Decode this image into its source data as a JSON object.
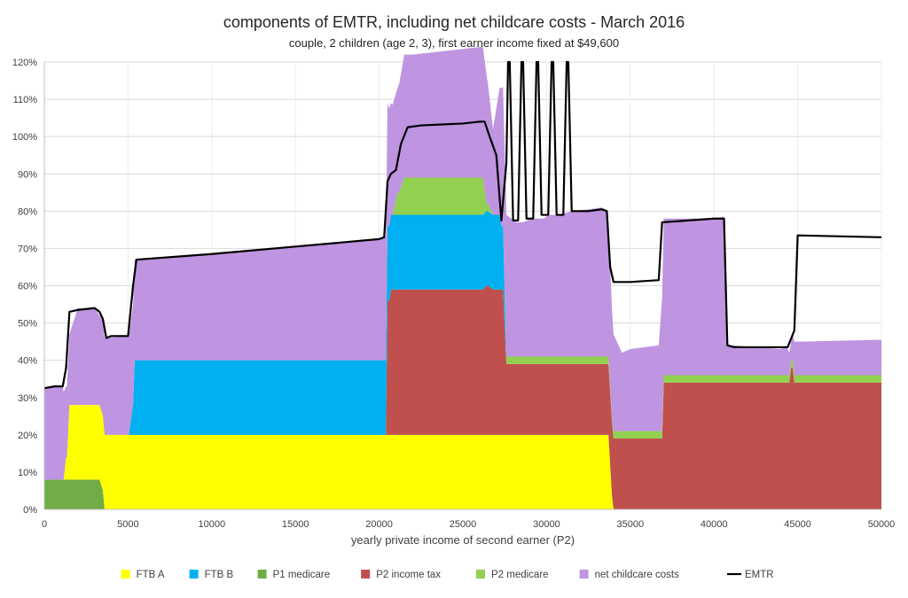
{
  "chart_data": {
    "type": "area",
    "title": "components of EMTR, including net childcare costs - March 2016",
    "subtitle": "couple, 2 children (age 2, 3), first earner income fixed at $49,600",
    "xlabel": "yearly private income of second earner (P2)",
    "ylabel": "",
    "xlim": [
      0,
      50000
    ],
    "ylim": [
      0,
      120
    ],
    "x_ticks": [
      0,
      5000,
      10000,
      15000,
      20000,
      25000,
      30000,
      35000,
      40000,
      45000,
      50000
    ],
    "x_tick_labels": [
      "0",
      "5000",
      "10000",
      "15000",
      "20000",
      "25000",
      "30000",
      "35000",
      "40000",
      "45000",
      "50000"
    ],
    "y_ticks": [
      0,
      10,
      20,
      30,
      40,
      50,
      60,
      70,
      80,
      90,
      100,
      110,
      120
    ],
    "y_tick_labels": [
      "0%",
      "10%",
      "20%",
      "30%",
      "40%",
      "50%",
      "60%",
      "70%",
      "80%",
      "90%",
      "100%",
      "110%",
      "120%"
    ],
    "stack_order": [
      "P1 medicare",
      "FTB A",
      "P2 income tax",
      "FTB B",
      "P2 medicare",
      "net childcare costs"
    ],
    "series": [
      {
        "name": "FTB A",
        "color": "#FFFF00",
        "points": [
          [
            0,
            0
          ],
          [
            1150,
            0
          ],
          [
            1150,
            6
          ],
          [
            1350,
            6
          ],
          [
            1350,
            20
          ],
          [
            33700,
            20
          ],
          [
            33700,
            4
          ],
          [
            33900,
            4
          ],
          [
            33900,
            0
          ],
          [
            50000,
            0
          ]
        ]
      },
      {
        "name": "FTB B",
        "color": "#00B0F0",
        "points": [
          [
            0,
            0
          ],
          [
            5050,
            0
          ],
          [
            5050,
            8
          ],
          [
            5300,
            8
          ],
          [
            5300,
            20
          ],
          [
            27200,
            20
          ],
          [
            27200,
            17
          ],
          [
            27400,
            17
          ],
          [
            27400,
            0
          ],
          [
            50000,
            0
          ]
        ]
      },
      {
        "name": "P1 medicare",
        "color": "#70AD47",
        "points": [
          [
            0,
            8
          ],
          [
            1150,
            8
          ],
          [
            1150,
            8
          ],
          [
            1350,
            8
          ],
          [
            1350,
            8
          ],
          [
            3300,
            8
          ],
          [
            3300,
            5
          ],
          [
            3500,
            5
          ],
          [
            3500,
            0
          ],
          [
            50000,
            0
          ]
        ]
      },
      {
        "name": "P2 income tax",
        "color": "#C0504D",
        "points": [
          [
            0,
            0
          ],
          [
            20400,
            0
          ],
          [
            20400,
            36
          ],
          [
            20600,
            36
          ],
          [
            20600,
            39
          ],
          [
            26200,
            39
          ],
          [
            26200,
            40
          ],
          [
            26500,
            40
          ],
          [
            26500,
            39
          ],
          [
            27400,
            39
          ],
          [
            27400,
            19
          ],
          [
            33700,
            19
          ],
          [
            33700,
            20
          ],
          [
            33900,
            20
          ],
          [
            33900,
            19
          ],
          [
            36900,
            19
          ],
          [
            36900,
            34
          ],
          [
            44500,
            34
          ],
          [
            44500,
            38
          ],
          [
            44700,
            38
          ],
          [
            44700,
            34
          ],
          [
            50000,
            34
          ]
        ]
      },
      {
        "name": "P2 medicare",
        "color": "#92D050",
        "points": [
          [
            0,
            0
          ],
          [
            20800,
            0
          ],
          [
            20800,
            6
          ],
          [
            21200,
            6
          ],
          [
            21200,
            10
          ],
          [
            26200,
            10
          ],
          [
            26200,
            2
          ],
          [
            26500,
            2
          ],
          [
            26500,
            0
          ],
          [
            27400,
            0
          ],
          [
            27400,
            2
          ],
          [
            33700,
            2
          ],
          [
            33700,
            1
          ],
          [
            33900,
            1
          ],
          [
            33900,
            2
          ],
          [
            36900,
            2
          ],
          [
            36900,
            2
          ],
          [
            44500,
            2
          ],
          [
            44500,
            2
          ],
          [
            44700,
            2
          ],
          [
            44700,
            2
          ],
          [
            50000,
            2
          ]
        ]
      },
      {
        "name": "net childcare costs",
        "color": "#BF94E0",
        "points": [
          [
            0,
            24.5
          ],
          [
            600,
            25
          ],
          [
            1100,
            25
          ],
          [
            1300,
            19
          ],
          [
            1500,
            19
          ],
          [
            2000,
            26
          ],
          [
            3000,
            26
          ],
          [
            3300,
            24
          ],
          [
            3600,
            26
          ],
          [
            5000,
            26.5
          ],
          [
            5400,
            27
          ],
          [
            5500,
            27
          ],
          [
            10000,
            28.5
          ],
          [
            15000,
            30.5
          ],
          [
            20000,
            32.5
          ],
          [
            20300,
            33
          ],
          [
            20500,
            33
          ],
          [
            20700,
            30
          ],
          [
            21100,
            28
          ],
          [
            21500,
            33
          ],
          [
            22000,
            33
          ],
          [
            26000,
            35
          ],
          [
            26400,
            35
          ],
          [
            26800,
            23
          ],
          [
            27300,
            37
          ],
          [
            27600,
            38
          ],
          [
            28200,
            36
          ],
          [
            28600,
            36
          ],
          [
            29100,
            37
          ],
          [
            29800,
            37
          ],
          [
            30200,
            38
          ],
          [
            30700,
            38
          ],
          [
            31500,
            39
          ],
          [
            32500,
            39.5
          ],
          [
            33000,
            39.8
          ],
          [
            33300,
            40
          ],
          [
            33600,
            39
          ],
          [
            34000,
            26
          ],
          [
            34500,
            21
          ],
          [
            35000,
            22
          ],
          [
            36700,
            23
          ],
          [
            37000,
            42
          ],
          [
            40000,
            42
          ],
          [
            40600,
            42.5
          ],
          [
            40800,
            8
          ],
          [
            41200,
            8
          ],
          [
            44000,
            7
          ],
          [
            44300,
            8
          ],
          [
            44600,
            5
          ],
          [
            44800,
            9
          ],
          [
            45200,
            9
          ],
          [
            50000,
            9.5
          ]
        ]
      }
    ],
    "emtr": {
      "name": "EMTR",
      "color": "#000000",
      "points": [
        [
          0,
          32.5
        ],
        [
          600,
          33
        ],
        [
          1100,
          33
        ],
        [
          1300,
          38
        ],
        [
          1500,
          53
        ],
        [
          2000,
          53.5
        ],
        [
          3000,
          54
        ],
        [
          3300,
          53
        ],
        [
          3500,
          51
        ],
        [
          3700,
          46
        ],
        [
          4000,
          46.5
        ],
        [
          5000,
          46.5
        ],
        [
          5300,
          60
        ],
        [
          5500,
          67
        ],
        [
          10000,
          68.5
        ],
        [
          15000,
          70.5
        ],
        [
          20000,
          72.5
        ],
        [
          20300,
          73
        ],
        [
          20500,
          88
        ],
        [
          20700,
          90
        ],
        [
          21000,
          91
        ],
        [
          21300,
          98
        ],
        [
          21700,
          102.5
        ],
        [
          22500,
          103
        ],
        [
          25000,
          103.5
        ],
        [
          26000,
          104
        ],
        [
          26300,
          104
        ],
        [
          26600,
          100
        ],
        [
          27000,
          95
        ],
        [
          27300,
          77.5
        ],
        [
          27600,
          93
        ],
        [
          27700,
          120
        ],
        [
          27800,
          120
        ],
        [
          28000,
          77.5
        ],
        [
          28300,
          77.5
        ],
        [
          28500,
          120
        ],
        [
          28600,
          120
        ],
        [
          28800,
          78
        ],
        [
          29200,
          78
        ],
        [
          29400,
          120
        ],
        [
          29500,
          120
        ],
        [
          29700,
          79
        ],
        [
          30100,
          79
        ],
        [
          30300,
          120
        ],
        [
          30400,
          120
        ],
        [
          30600,
          79
        ],
        [
          31000,
          79
        ],
        [
          31200,
          120
        ],
        [
          31300,
          120
        ],
        [
          31500,
          80
        ],
        [
          32500,
          80
        ],
        [
          33300,
          80.5
        ],
        [
          33600,
          80
        ],
        [
          33800,
          65
        ],
        [
          34000,
          61
        ],
        [
          35000,
          61
        ],
        [
          36700,
          61.5
        ],
        [
          36900,
          77
        ],
        [
          40000,
          78
        ],
        [
          40600,
          78
        ],
        [
          40800,
          44
        ],
        [
          41200,
          43.5
        ],
        [
          44000,
          43.5
        ],
        [
          44400,
          43.5
        ],
        [
          44800,
          48
        ],
        [
          45000,
          73.5
        ],
        [
          50000,
          73
        ]
      ]
    },
    "legend": [
      {
        "label": "FTB A",
        "color": "#FFFF00",
        "kind": "box"
      },
      {
        "label": "FTB B",
        "color": "#00B0F0",
        "kind": "box"
      },
      {
        "label": "P1 medicare",
        "color": "#70AD47",
        "kind": "box"
      },
      {
        "label": "P2 income tax",
        "color": "#C0504D",
        "kind": "box"
      },
      {
        "label": "P2 medicare",
        "color": "#92D050",
        "kind": "box"
      },
      {
        "label": "net childcare costs",
        "color": "#BF94E0",
        "kind": "box"
      },
      {
        "label": "EMTR",
        "color": "#000000",
        "kind": "line"
      }
    ],
    "legend_position": "bottom",
    "grid": true
  }
}
